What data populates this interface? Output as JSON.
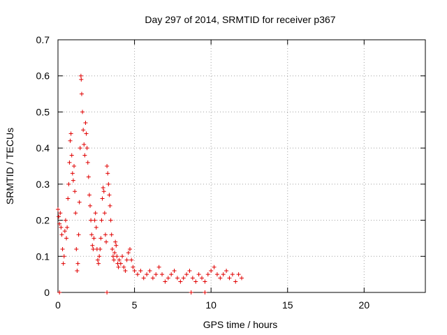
{
  "chart_data": {
    "type": "scatter",
    "title": "Day 297 of 2014, SRMTID for receiver p367",
    "xlabel": "GPS time / hours",
    "ylabel": "SRMTID / TECUs",
    "xlim": [
      0,
      24
    ],
    "ylim": [
      0,
      0.7
    ],
    "xticks": [
      "0",
      "5",
      "10",
      "15",
      "20"
    ],
    "yticks": [
      "0",
      "0.1",
      "0.2",
      "0.3",
      "0.4",
      "0.5",
      "0.6",
      "0.7"
    ],
    "grid": true,
    "marker": "+",
    "series_color": "#e00000",
    "series": [
      {
        "name": "SRMTID",
        "points": [
          [
            0.0,
            0.23
          ],
          [
            0.05,
            0.21
          ],
          [
            0.1,
            0.19
          ],
          [
            0.15,
            0.22
          ],
          [
            0.2,
            0.18
          ],
          [
            0.25,
            0.16
          ],
          [
            0.3,
            0.12
          ],
          [
            0.35,
            0.08
          ],
          [
            0.4,
            0.1
          ],
          [
            0.45,
            0.17
          ],
          [
            0.5,
            0.2
          ],
          [
            0.55,
            0.15
          ],
          [
            0.6,
            0.18
          ],
          [
            0.65,
            0.26
          ],
          [
            0.7,
            0.3
          ],
          [
            0.75,
            0.36
          ],
          [
            0.8,
            0.42
          ],
          [
            0.85,
            0.44
          ],
          [
            0.9,
            0.38
          ],
          [
            0.95,
            0.33
          ],
          [
            1.0,
            0.31
          ],
          [
            1.05,
            0.35
          ],
          [
            1.1,
            0.28
          ],
          [
            1.15,
            0.22
          ],
          [
            1.2,
            0.12
          ],
          [
            1.25,
            0.06
          ],
          [
            1.3,
            0.08
          ],
          [
            1.35,
            0.16
          ],
          [
            1.4,
            0.25
          ],
          [
            1.45,
            0.4
          ],
          [
            1.5,
            0.6
          ],
          [
            1.52,
            0.59
          ],
          [
            1.55,
            0.55
          ],
          [
            1.6,
            0.5
          ],
          [
            1.65,
            0.45
          ],
          [
            1.7,
            0.41
          ],
          [
            1.75,
            0.38
          ],
          [
            1.8,
            0.47
          ],
          [
            1.85,
            0.44
          ],
          [
            1.9,
            0.4
          ],
          [
            1.95,
            0.36
          ],
          [
            2.0,
            0.32
          ],
          [
            2.05,
            0.27
          ],
          [
            2.1,
            0.24
          ],
          [
            2.15,
            0.2
          ],
          [
            2.2,
            0.16
          ],
          [
            2.25,
            0.13
          ],
          [
            2.3,
            0.12
          ],
          [
            2.35,
            0.15
          ],
          [
            2.4,
            0.2
          ],
          [
            2.45,
            0.22
          ],
          [
            2.5,
            0.18
          ],
          [
            2.55,
            0.12
          ],
          [
            2.6,
            0.09
          ],
          [
            2.65,
            0.08
          ],
          [
            2.7,
            0.1
          ],
          [
            2.75,
            0.12
          ],
          [
            2.8,
            0.15
          ],
          [
            2.85,
            0.2
          ],
          [
            2.9,
            0.26
          ],
          [
            2.95,
            0.29
          ],
          [
            3.0,
            0.28
          ],
          [
            3.05,
            0.22
          ],
          [
            3.1,
            0.16
          ],
          [
            3.15,
            0.14
          ],
          [
            3.2,
            0.35
          ],
          [
            3.25,
            0.33
          ],
          [
            3.3,
            0.3
          ],
          [
            3.35,
            0.27
          ],
          [
            3.4,
            0.24
          ],
          [
            3.45,
            0.2
          ],
          [
            3.5,
            0.16
          ],
          [
            3.55,
            0.12
          ],
          [
            3.6,
            0.1
          ],
          [
            3.65,
            0.09
          ],
          [
            3.7,
            0.11
          ],
          [
            3.75,
            0.14
          ],
          [
            3.8,
            0.13
          ],
          [
            3.85,
            0.1
          ],
          [
            3.9,
            0.08
          ],
          [
            3.95,
            0.07
          ],
          [
            4.0,
            0.09
          ],
          [
            4.1,
            0.08
          ],
          [
            4.2,
            0.1
          ],
          [
            4.3,
            0.07
          ],
          [
            4.4,
            0.06
          ],
          [
            4.5,
            0.09
          ],
          [
            4.6,
            0.11
          ],
          [
            4.7,
            0.12
          ],
          [
            4.8,
            0.09
          ],
          [
            4.9,
            0.07
          ],
          [
            5.0,
            0.06
          ],
          [
            5.2,
            0.05
          ],
          [
            5.4,
            0.06
          ],
          [
            5.6,
            0.04
          ],
          [
            5.8,
            0.05
          ],
          [
            6.0,
            0.06
          ],
          [
            6.2,
            0.04
          ],
          [
            6.4,
            0.05
          ],
          [
            6.6,
            0.07
          ],
          [
            6.8,
            0.05
          ],
          [
            7.0,
            0.03
          ],
          [
            7.2,
            0.04
          ],
          [
            7.4,
            0.05
          ],
          [
            7.6,
            0.06
          ],
          [
            7.8,
            0.04
          ],
          [
            8.0,
            0.03
          ],
          [
            8.2,
            0.04
          ],
          [
            8.4,
            0.05
          ],
          [
            8.6,
            0.06
          ],
          [
            8.8,
            0.04
          ],
          [
            9.0,
            0.03
          ],
          [
            9.2,
            0.05
          ],
          [
            9.4,
            0.04
          ],
          [
            9.6,
            0.03
          ],
          [
            9.8,
            0.05
          ],
          [
            10.0,
            0.06
          ],
          [
            10.2,
            0.07
          ],
          [
            10.4,
            0.05
          ],
          [
            10.6,
            0.04
          ],
          [
            10.8,
            0.05
          ],
          [
            11.0,
            0.06
          ],
          [
            11.2,
            0.04
          ],
          [
            11.4,
            0.05
          ],
          [
            11.6,
            0.03
          ],
          [
            11.8,
            0.05
          ],
          [
            12.0,
            0.04
          ],
          [
            0.1,
            0.0
          ],
          [
            3.2,
            0.0
          ],
          [
            8.7,
            0.0
          ],
          [
            9.6,
            0.0
          ]
        ]
      }
    ]
  }
}
